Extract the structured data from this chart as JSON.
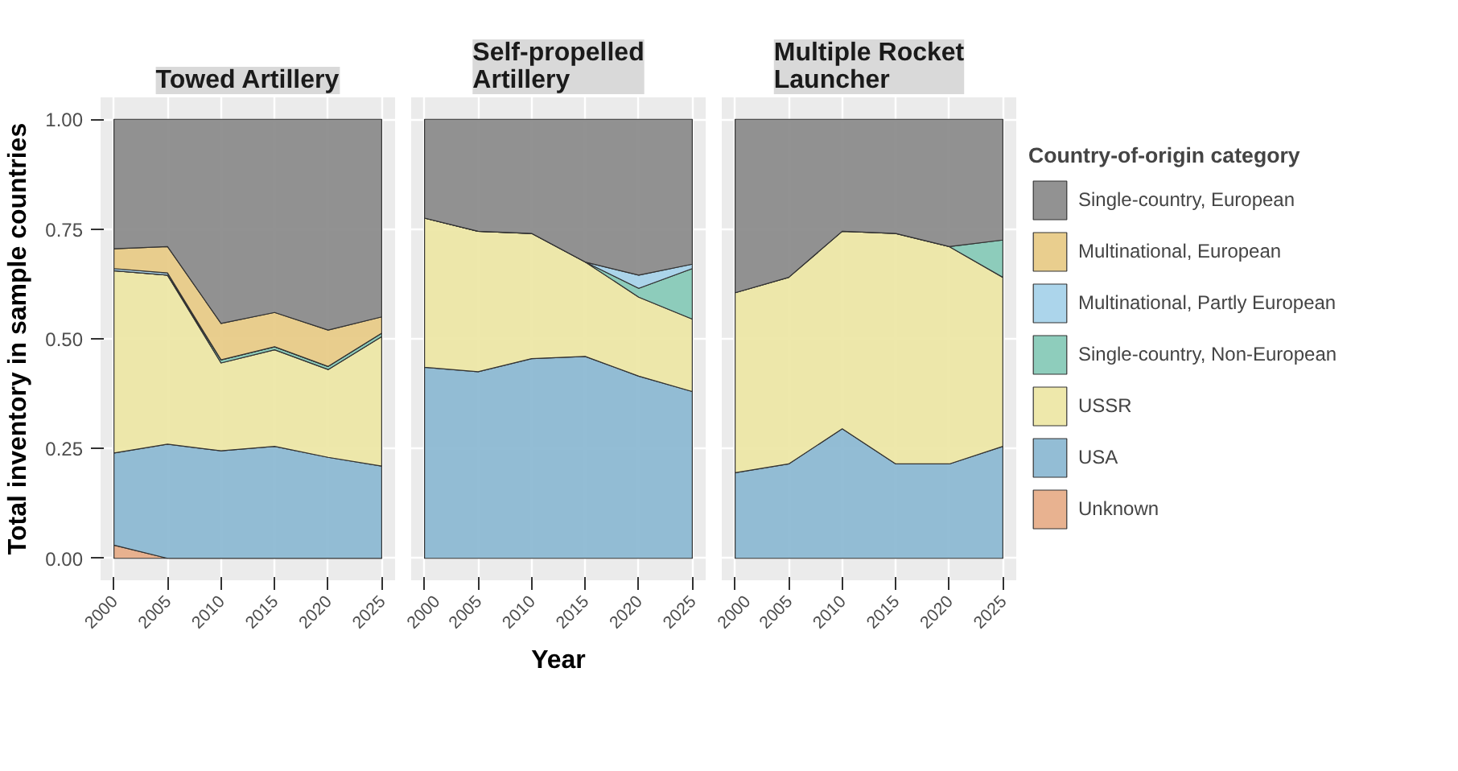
{
  "chart_data": [
    {
      "type": "area",
      "title": "Towed Artillery",
      "ylabel": "Total inventory in sample countries",
      "legend": "right",
      "legend_title": "Country-of-origin category",
      "stacked": true,
      "grid": true,
      "x": [
        2000,
        2005,
        2010,
        2015,
        2020,
        2025
      ],
      "xlim": [
        1998.75,
        2026.25
      ],
      "ylim": [
        -0.05,
        1.05
      ],
      "xticks": [
        2000,
        2005,
        2010,
        2015,
        2020,
        2025
      ],
      "yticks": [
        {
          "value": 0,
          "label": "0.00"
        },
        {
          "value": 0.25,
          "label": "0.25"
        },
        {
          "value": 0.5,
          "label": "0.50"
        },
        {
          "value": 0.75,
          "label": "0.75"
        },
        {
          "value": 1,
          "label": "1.00"
        }
      ],
      "series": [
        {
          "name": "Unknown",
          "color": "#e7ae8a",
          "values": [
            0.03,
            0,
            0,
            0,
            0,
            0
          ]
        },
        {
          "name": "USA",
          "color": "#8db9d3",
          "values": [
            0.21,
            0.26,
            0.245,
            0.255,
            0.23,
            0.21
          ]
        },
        {
          "name": "USSR",
          "color": "#ede7a6",
          "values": [
            0.415,
            0.385,
            0.2,
            0.22,
            0.2,
            0.295
          ]
        },
        {
          "name": "Single-country, Non-European",
          "color": "#88cab8",
          "values": [
            0,
            0,
            0.007,
            0.007,
            0.007,
            0.008
          ]
        },
        {
          "name": "Multinational, Partly European",
          "color": "#a8d3ea",
          "values": [
            0.005,
            0.005,
            0,
            0,
            0,
            0
          ]
        },
        {
          "name": "Multinational, European",
          "color": "#e8cb88",
          "values": [
            0.045,
            0.06,
            0.083,
            0.078,
            0.083,
            0.037
          ]
        },
        {
          "name": "Single-country, European",
          "color": "#8c8c8c",
          "values": [
            0.295,
            0.29,
            0.465,
            0.44,
            0.48,
            0.45
          ]
        }
      ]
    },
    {
      "type": "area",
      "title": "Self-propelled\nArtillery",
      "xlabel": "Year",
      "stacked": true,
      "grid": true,
      "tick_labels": "x",
      "x": [
        2000,
        2005,
        2010,
        2015,
        2020,
        2025
      ],
      "xlim": [
        1998.75,
        2026.25
      ],
      "ylim": [
        -0.05,
        1.05
      ],
      "xticks": [
        2000,
        2005,
        2010,
        2015,
        2020,
        2025
      ],
      "yticks": [
        0,
        0.25,
        0.5,
        0.75,
        1
      ],
      "series": [
        {
          "color": "#8db9d3",
          "values": [
            0.435,
            0.425,
            0.455,
            0.46,
            0.415,
            0.38
          ]
        },
        {
          "color": "#ede7a6",
          "values": [
            0.34,
            0.32,
            0.285,
            0.215,
            0.18,
            0.165
          ]
        },
        {
          "color": "#88cab8",
          "values": [
            0,
            0,
            0,
            0,
            0.02,
            0.115
          ]
        },
        {
          "color": "#a8d3ea",
          "values": [
            0,
            0,
            0,
            0,
            0.03,
            0.01
          ]
        },
        {
          "color": "#8c8c8c",
          "values": [
            0.225,
            0.255,
            0.26,
            0.325,
            0.355,
            0.33
          ]
        }
      ]
    },
    {
      "type": "area",
      "title": "Multiple Rocket\nLauncher",
      "stacked": true,
      "grid": true,
      "tick_labels": "x",
      "x": [
        2000,
        2005,
        2010,
        2015,
        2020,
        2025
      ],
      "xlim": [
        1998.75,
        2026.25
      ],
      "ylim": [
        -0.05,
        1.05
      ],
      "xticks": [
        2000,
        2005,
        2010,
        2015,
        2020,
        2025
      ],
      "yticks": [
        0,
        0.25,
        0.5,
        0.75,
        1
      ],
      "series": [
        {
          "color": "#8db9d3",
          "values": [
            0.195,
            0.215,
            0.295,
            0.215,
            0.215,
            0.255
          ]
        },
        {
          "color": "#ede7a6",
          "values": [
            0.41,
            0.425,
            0.45,
            0.525,
            0.495,
            0.385
          ]
        },
        {
          "color": "#88cab8",
          "values": [
            0,
            0,
            0,
            0,
            0,
            0.085
          ]
        },
        {
          "color": "#8c8c8c",
          "values": [
            0.395,
            0.36,
            0.255,
            0.26,
            0.29,
            0.275
          ]
        }
      ]
    }
  ]
}
